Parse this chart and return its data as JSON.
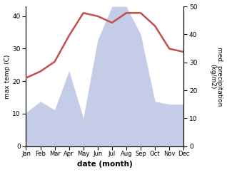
{
  "months": [
    "Jan",
    "Feb",
    "Mar",
    "Apr",
    "May",
    "Jun",
    "Jul",
    "Aug",
    "Sep",
    "Oct",
    "Nov",
    "Dec"
  ],
  "temperature": [
    21,
    23,
    26,
    34,
    41,
    40,
    38,
    41,
    41,
    37,
    30,
    29
  ],
  "precipitation": [
    12,
    16,
    13,
    27,
    10,
    38,
    50,
    50,
    40,
    16,
    15,
    15
  ],
  "temp_color": "#c0504d",
  "precip_fill_color": "#c5cce8",
  "ylabel_left": "max temp (C)",
  "ylabel_right": "med. precipitation\n(kg/m2)",
  "xlabel": "date (month)",
  "ylim_left": [
    0,
    43
  ],
  "ylim_right": [
    0,
    50
  ],
  "yticks_left": [
    0,
    10,
    20,
    30,
    40
  ],
  "yticks_right": [
    0,
    10,
    20,
    30,
    40,
    50
  ],
  "temp_linewidth": 1.8,
  "background_color": "#ffffff"
}
